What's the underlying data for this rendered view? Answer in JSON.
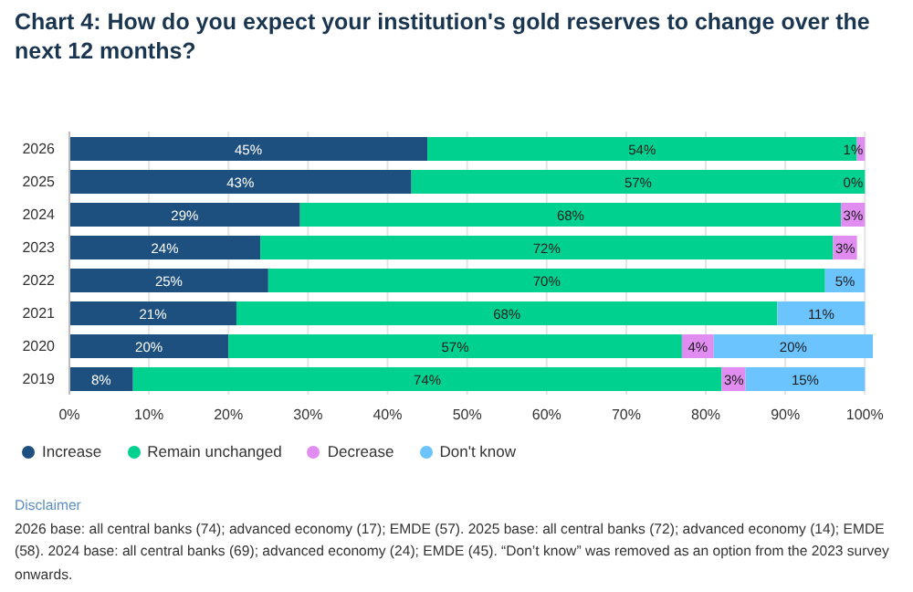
{
  "chart_data": {
    "type": "bar",
    "orientation": "horizontal",
    "stacked": true,
    "title": "Chart 4: How do you expect your institution's gold reserves to change over the next 12 months?",
    "categories": [
      "2026",
      "2025",
      "2024",
      "2023",
      "2022",
      "2021",
      "2020",
      "2019"
    ],
    "series": [
      {
        "name": "Increase",
        "color": "#1d4f7f",
        "values": [
          45,
          43,
          29,
          24,
          25,
          21,
          20,
          8
        ],
        "value_labels": [
          "45%",
          "43%",
          "29%",
          "24%",
          "25%",
          "21%",
          "20%",
          "8%"
        ]
      },
      {
        "name": "Remain unchanged",
        "color": "#00d18f",
        "values": [
          54,
          57,
          68,
          72,
          70,
          68,
          57,
          74
        ],
        "value_labels": [
          "54%",
          "57%",
          "68%",
          "72%",
          "70%",
          "68%",
          "57%",
          "74%"
        ]
      },
      {
        "name": "Decrease",
        "color": "#e08cf0",
        "values": [
          1,
          0,
          3,
          3,
          null,
          null,
          4,
          3
        ],
        "value_labels": [
          "1%",
          "0%",
          "3%",
          "3%",
          null,
          null,
          "4%",
          "3%"
        ]
      },
      {
        "name": "Don't know",
        "color": "#6cc4ff",
        "values": [
          null,
          null,
          null,
          null,
          5,
          11,
          20,
          15
        ],
        "value_labels": [
          null,
          null,
          null,
          null,
          "5%",
          "11%",
          "20%",
          "15%"
        ]
      }
    ],
    "xlim": [
      0,
      101
    ],
    "xticks": [
      {
        "value": 0,
        "label": "0%"
      },
      {
        "value": 10,
        "label": "10%"
      },
      {
        "value": 20,
        "label": "20%"
      },
      {
        "value": 30,
        "label": "30%"
      },
      {
        "value": 40,
        "label": "40%"
      },
      {
        "value": 50,
        "label": "50%"
      },
      {
        "value": 60,
        "label": "60%"
      },
      {
        "value": 70,
        "label": "70%"
      },
      {
        "value": 80,
        "label": "80%"
      },
      {
        "value": 90,
        "label": "90%"
      },
      {
        "value": 100,
        "label": "100%"
      }
    ],
    "grid": "x",
    "legend": "bottom left",
    "annotations": [
      "Disclaimer",
      "2026 base: all central banks (74); advanced economy (17); EMDE (57). 2025 base: all central banks (72); advanced economy (14); EMDE (58). 2024 base: all central banks (69); advanced economy (24); EMDE (45). “Don’t know” was removed as an option from the 2023 survey onwards."
    ]
  }
}
